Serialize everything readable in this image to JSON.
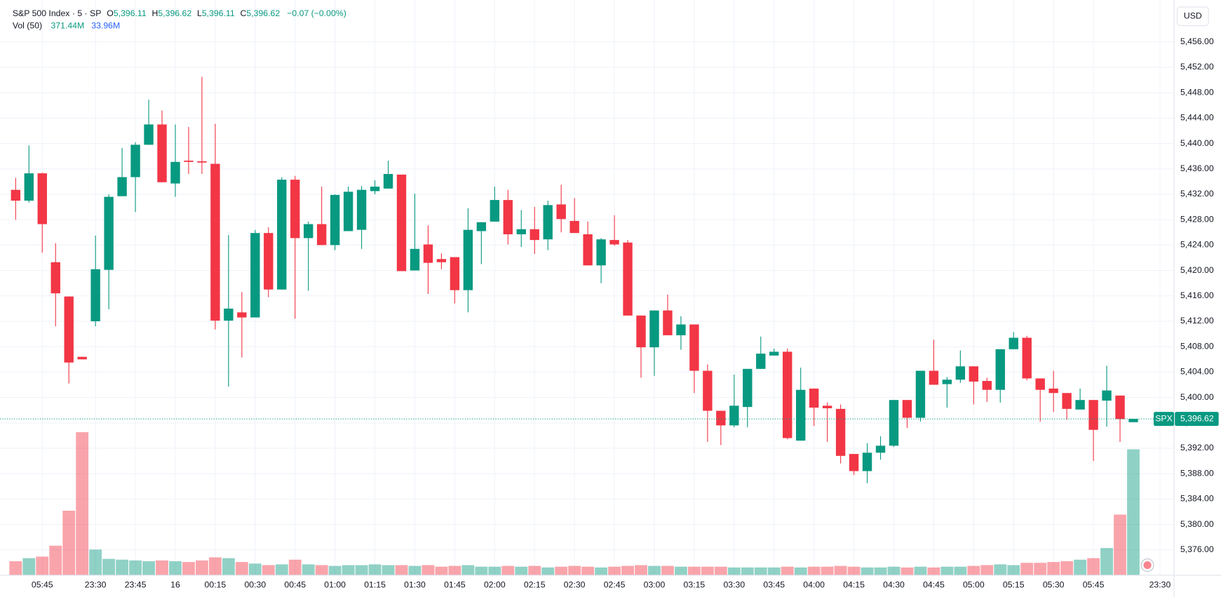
{
  "header": {
    "title": "S&P 500 Index · 5 · SP",
    "ohlc": [
      {
        "key": "O",
        "value": "5,396.11"
      },
      {
        "key": "H",
        "value": "5,396.62"
      },
      {
        "key": "L",
        "value": "5,396.11"
      },
      {
        "key": "C",
        "value": "5,396.62"
      }
    ],
    "change": "−0.07 (−0.00%)",
    "volume_legend": {
      "name": "Vol (50)",
      "value": "371.44M",
      "ma": "33.96M"
    }
  },
  "currency": "USD",
  "chart_data": {
    "type": "candlestick",
    "up_color": "#089981",
    "down_color": "#f23645",
    "grid": true,
    "ylim": [
      5372.0,
      5462.6
    ],
    "yticks": [
      {
        "value": 5376,
        "label": "5,376.00"
      },
      {
        "value": 5380,
        "label": "5,380.00"
      },
      {
        "value": 5384,
        "label": "5,384.00"
      },
      {
        "value": 5388,
        "label": "5,388.00"
      },
      {
        "value": 5392,
        "label": "5,392.00"
      },
      {
        "value": 5396,
        "label": "5,396.00"
      },
      {
        "value": 5400,
        "label": "5,400.00"
      },
      {
        "value": 5404,
        "label": "5,404.00"
      },
      {
        "value": 5408,
        "label": "5,408.00"
      },
      {
        "value": 5412,
        "label": "5,412.00"
      },
      {
        "value": 5416,
        "label": "5,416.00"
      },
      {
        "value": 5420,
        "label": "5,420.00"
      },
      {
        "value": 5424,
        "label": "5,424.00"
      },
      {
        "value": 5428,
        "label": "5,428.00"
      },
      {
        "value": 5432,
        "label": "5,432.00"
      },
      {
        "value": 5436,
        "label": "5,436.00"
      },
      {
        "value": 5440,
        "label": "5,440.00"
      },
      {
        "value": 5444,
        "label": "5,444.00"
      },
      {
        "value": 5448,
        "label": "5,448.00"
      },
      {
        "value": 5452,
        "label": "5,452.00"
      },
      {
        "value": 5456,
        "label": "5,456.00"
      }
    ],
    "xticks": [
      {
        "value": 2,
        "label": "05:45"
      },
      {
        "value": 6,
        "label": "23:30"
      },
      {
        "value": 9,
        "label": "23:45"
      },
      {
        "value": 12,
        "label": "16"
      },
      {
        "value": 15,
        "label": "00:15"
      },
      {
        "value": 18,
        "label": "00:30"
      },
      {
        "value": 21,
        "label": "00:45"
      },
      {
        "value": 24,
        "label": "01:00"
      },
      {
        "value": 27,
        "label": "01:15"
      },
      {
        "value": 30,
        "label": "01:30"
      },
      {
        "value": 33,
        "label": "01:45"
      },
      {
        "value": 36,
        "label": "02:00"
      },
      {
        "value": 39,
        "label": "02:15"
      },
      {
        "value": 42,
        "label": "02:30"
      },
      {
        "value": 45,
        "label": "02:45"
      },
      {
        "value": 48,
        "label": "03:00"
      },
      {
        "value": 51,
        "label": "03:15"
      },
      {
        "value": 54,
        "label": "03:30"
      },
      {
        "value": 57,
        "label": "03:45"
      },
      {
        "value": 60,
        "label": "04:00"
      },
      {
        "value": 63,
        "label": "04:15"
      },
      {
        "value": 66,
        "label": "04:30"
      },
      {
        "value": 69,
        "label": "04:45"
      },
      {
        "value": 72,
        "label": "05:00"
      },
      {
        "value": 75,
        "label": "05:15"
      },
      {
        "value": 78,
        "label": "05:30"
      },
      {
        "value": 81,
        "label": "05:45"
      },
      {
        "value": 86,
        "label": "23:30"
      }
    ],
    "open": [
      5432.7,
      5431.0,
      5435.3,
      5421.3,
      5415.9,
      5406.4,
      5412.0,
      5420.1,
      5431.7,
      5434.7,
      5439.8,
      5443.0,
      5433.7,
      5437.3,
      5437.2,
      5436.8,
      5412.1,
      5413.4,
      5412.6,
      5425.9,
      5417.0,
      5434.3,
      5425.1,
      5427.3,
      5424.0,
      5426.2,
      5426.4,
      5432.5,
      5432.9,
      5435.1,
      5420.0,
      5424.1,
      5421.8,
      5422.1,
      5416.9,
      5426.2,
      5427.7,
      5431.1,
      5425.7,
      5426.5,
      5424.9,
      5430.4,
      5427.8,
      5425.7,
      5420.8,
      5424.8,
      5424.4,
      5412.9,
      5407.9,
      5413.7,
      5409.8,
      5411.5,
      5404.2,
      5397.9,
      5395.6,
      5398.5,
      5404.5,
      5406.6,
      5407.2,
      5393.2,
      5401.4,
      5398.7,
      5398.2,
      5391.1,
      5388.4,
      5391.3,
      5392.4,
      5399.6,
      5396.8,
      5404.2,
      5402.1,
      5402.8,
      5404.9,
      5402.6,
      5401.2,
      5407.6,
      5409.4,
      5403.0,
      5401.4,
      5400.7,
      5398.1,
      5399.6,
      5399.5,
      5400.3,
      5396.11
    ],
    "high": [
      5434.6,
      5439.7,
      5435.4,
      5424.3,
      5415.9,
      5406.4,
      5425.5,
      5432.0,
      5439.3,
      5440.2,
      5446.9,
      5445.2,
      5443.0,
      5442.6,
      5450.5,
      5443.1,
      5425.6,
      5416.6,
      5426.4,
      5426.8,
      5434.7,
      5434.9,
      5427.7,
      5433.2,
      5432.0,
      5433.2,
      5433.3,
      5434.2,
      5437.3,
      5435.1,
      5432.1,
      5427.1,
      5422.7,
      5422.1,
      5429.8,
      5427.6,
      5433.2,
      5432.7,
      5429.5,
      5430.0,
      5431.0,
      5433.5,
      5431.4,
      5427.7,
      5425.1,
      5428.7,
      5424.8,
      5412.9,
      5413.7,
      5416.2,
      5412.8,
      5411.5,
      5405.2,
      5397.9,
      5403.6,
      5404.5,
      5409.6,
      5407.7,
      5407.7,
      5404.7,
      5401.4,
      5399.2,
      5398.9,
      5391.1,
      5392.8,
      5393.9,
      5399.6,
      5399.6,
      5404.2,
      5409.1,
      5403.2,
      5407.4,
      5404.9,
      5403.1,
      5407.6,
      5410.3,
      5409.7,
      5403.0,
      5404.2,
      5400.7,
      5401.4,
      5399.6,
      5405.0,
      5400.3,
      5396.62
    ],
    "low": [
      5428.0,
      5430.7,
      5422.8,
      5411.2,
      5402.2,
      5406.0,
      5411.2,
      5413.9,
      5431.7,
      5429.2,
      5439.8,
      5433.9,
      5431.6,
      5435.2,
      5435.2,
      5410.7,
      5401.7,
      5406.3,
      5412.6,
      5415.8,
      5417.0,
      5412.4,
      5416.8,
      5424.0,
      5423.2,
      5426.2,
      5423.4,
      5432.0,
      5432.9,
      5419.9,
      5420.0,
      5416.3,
      5420.2,
      5414.8,
      5413.4,
      5421.0,
      5427.7,
      5424.1,
      5423.7,
      5422.6,
      5423.2,
      5426.0,
      5425.9,
      5420.8,
      5418.0,
      5423.9,
      5412.9,
      5403.1,
      5403.4,
      5409.8,
      5407.5,
      5400.7,
      5393.0,
      5392.5,
      5395.3,
      5395.3,
      5404.5,
      5406.6,
      5393.4,
      5393.2,
      5395.5,
      5393.0,
      5389.6,
      5387.8,
      5386.5,
      5390.2,
      5392.2,
      5395.2,
      5396.2,
      5402.0,
      5398.4,
      5402.3,
      5398.9,
      5399.3,
      5399.2,
      5407.6,
      5402.7,
      5396.2,
      5397.7,
      5396.5,
      5398.1,
      5390.0,
      5395.4,
      5393.0,
      5396.11
    ],
    "close": [
      5431.0,
      5435.3,
      5427.3,
      5416.4,
      5405.5,
      5406.0,
      5420.2,
      5431.6,
      5434.7,
      5439.8,
      5443.0,
      5433.9,
      5437.1,
      5437.1,
      5437.0,
      5412.1,
      5414.0,
      5412.6,
      5425.9,
      5417.0,
      5434.3,
      5425.1,
      5427.3,
      5424.0,
      5431.9,
      5432.4,
      5432.7,
      5433.2,
      5435.2,
      5419.9,
      5423.4,
      5421.2,
      5421.3,
      5416.9,
      5426.4,
      5427.6,
      5431.1,
      5425.7,
      5426.5,
      5424.8,
      5430.3,
      5428.1,
      5425.9,
      5420.8,
      5424.9,
      5424.1,
      5412.9,
      5407.9,
      5413.7,
      5409.8,
      5411.5,
      5404.2,
      5397.9,
      5395.6,
      5398.7,
      5404.5,
      5406.9,
      5407.2,
      5393.6,
      5401.2,
      5398.4,
      5398.3,
      5390.8,
      5388.4,
      5391.3,
      5392.4,
      5399.6,
      5396.8,
      5404.2,
      5402.0,
      5402.8,
      5404.9,
      5402.5,
      5401.2,
      5407.6,
      5409.4,
      5403.0,
      5401.2,
      5400.7,
      5398.2,
      5399.6,
      5394.9,
      5401.1,
      5396.6,
      5396.62
    ],
    "volume": [
      41.3,
      50.4,
      55.0,
      87.1,
      190.3,
      421.9,
      75.7,
      48.2,
      45.9,
      43.6,
      41.3,
      43.6,
      41.3,
      39.0,
      43.6,
      52.7,
      50.4,
      39.0,
      34.4,
      29.8,
      32.1,
      45.9,
      32.1,
      29.8,
      27.5,
      29.8,
      29.8,
      32.1,
      29.8,
      29.8,
      27.5,
      29.8,
      25.2,
      27.5,
      29.8,
      25.2,
      25.2,
      27.5,
      25.2,
      27.5,
      22.9,
      25.2,
      27.5,
      25.2,
      22.9,
      25.2,
      27.5,
      29.8,
      27.5,
      27.5,
      25.2,
      25.2,
      25.2,
      25.2,
      22.9,
      22.9,
      22.9,
      22.9,
      25.2,
      22.9,
      25.2,
      25.2,
      27.5,
      25.2,
      22.9,
      22.9,
      25.2,
      22.9,
      25.2,
      22.9,
      25.2,
      25.2,
      27.5,
      29.8,
      32.1,
      29.8,
      36.7,
      36.7,
      39.0,
      41.3,
      45.9,
      50.4,
      80.3,
      178.9,
      371.44
    ],
    "price_line": {
      "value": 5396.62,
      "symbol": "SPX",
      "label": "5,396.62"
    }
  }
}
